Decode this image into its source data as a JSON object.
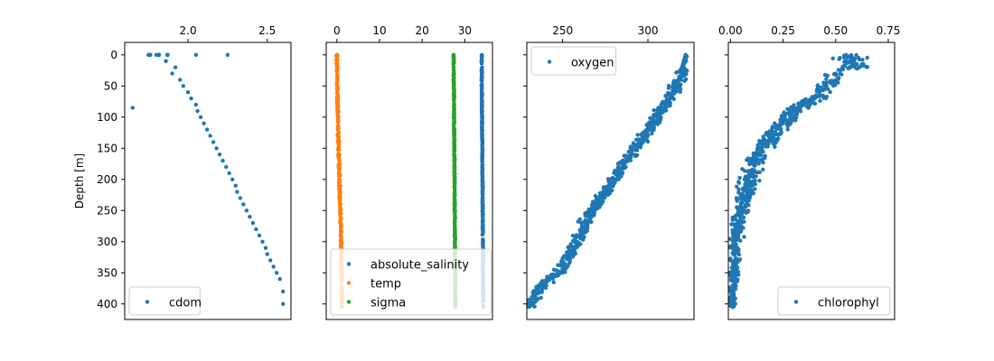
{
  "chart_data": [
    {
      "type": "scatter",
      "ylabel": "Depth [m]",
      "xlabel": "",
      "xlim": [
        1.6,
        2.65
      ],
      "xticks": [
        2.0,
        2.5
      ],
      "xtick_labels": [
        "2.0",
        "2.5"
      ],
      "ylim": [
        425,
        -20
      ],
      "yticks": [
        0,
        50,
        100,
        150,
        200,
        250,
        300,
        350,
        400
      ],
      "ytick_labels": [
        "0",
        "50",
        "100",
        "150",
        "200",
        "250",
        "300",
        "350",
        "400"
      ],
      "legend_position": "lower-left",
      "series": [
        {
          "name": "cdom",
          "color": "#1f77b4",
          "points": [
            [
              1.8,
              0
            ],
            [
              1.86,
              10
            ],
            [
              1.92,
              20
            ],
            [
              1.9,
              30
            ],
            [
              1.95,
              40
            ],
            [
              1.97,
              50
            ],
            [
              2.0,
              60
            ],
            [
              2.02,
              70
            ],
            [
              2.05,
              80
            ],
            [
              2.06,
              90
            ],
            [
              2.08,
              100
            ],
            [
              2.1,
              110
            ],
            [
              2.12,
              120
            ],
            [
              2.14,
              130
            ],
            [
              2.16,
              140
            ],
            [
              2.18,
              150
            ],
            [
              2.2,
              160
            ],
            [
              2.22,
              170
            ],
            [
              2.24,
              180
            ],
            [
              2.26,
              190
            ],
            [
              2.28,
              200
            ],
            [
              2.3,
              210
            ],
            [
              2.31,
              220
            ],
            [
              2.33,
              230
            ],
            [
              2.35,
              240
            ],
            [
              2.37,
              250
            ],
            [
              2.39,
              260
            ],
            [
              2.41,
              270
            ],
            [
              2.43,
              280
            ],
            [
              2.45,
              290
            ],
            [
              2.47,
              300
            ],
            [
              2.49,
              310
            ],
            [
              2.5,
              320
            ],
            [
              2.52,
              330
            ],
            [
              2.54,
              340
            ],
            [
              2.56,
              350
            ],
            [
              2.58,
              360
            ],
            [
              2.6,
              380
            ],
            [
              2.6,
              400
            ],
            [
              1.65,
              85
            ],
            [
              1.75,
              0
            ],
            [
              2.25,
              0
            ],
            [
              2.05,
              0
            ]
          ]
        }
      ]
    },
    {
      "type": "scatter",
      "xlabel": "",
      "xlim": [
        -2.5,
        36.5
      ],
      "xticks": [
        0,
        10,
        20,
        30
      ],
      "xtick_labels": [
        "0",
        "10",
        "20",
        "30"
      ],
      "ylim": [
        425,
        -20
      ],
      "legend_position": "lower-left",
      "series": [
        {
          "name": "absolute_salinity",
          "color": "#1f77b4",
          "points": [
            [
              34.0,
              0
            ],
            [
              34.0,
              50
            ],
            [
              34.05,
              100
            ],
            [
              34.1,
              150
            ],
            [
              34.15,
              200
            ],
            [
              34.2,
              250
            ],
            [
              34.25,
              300
            ],
            [
              34.3,
              350
            ],
            [
              34.35,
              405
            ]
          ]
        },
        {
          "name": "temp",
          "color": "#ff7f0e",
          "points": [
            [
              0.0,
              0
            ],
            [
              0.1,
              50
            ],
            [
              0.25,
              100
            ],
            [
              0.4,
              150
            ],
            [
              0.6,
              200
            ],
            [
              0.8,
              250
            ],
            [
              1.0,
              300
            ],
            [
              1.1,
              350
            ],
            [
              1.2,
              405
            ]
          ]
        },
        {
          "name": "sigma",
          "color": "#2ca02c",
          "points": [
            [
              27.4,
              0
            ],
            [
              27.45,
              50
            ],
            [
              27.5,
              100
            ],
            [
              27.55,
              150
            ],
            [
              27.6,
              200
            ],
            [
              27.65,
              250
            ],
            [
              27.7,
              300
            ],
            [
              27.75,
              350
            ],
            [
              27.8,
              405
            ]
          ]
        }
      ]
    },
    {
      "type": "scatter",
      "xlabel": "",
      "xlim": [
        229,
        327
      ],
      "xticks": [
        250,
        300
      ],
      "xtick_labels": [
        "250",
        "300"
      ],
      "ylim": [
        425,
        -20
      ],
      "legend_position": "top-left",
      "series": [
        {
          "name": "oxygen",
          "color": "#1f77b4",
          "points": [
            [
              322,
              0
            ],
            [
              320,
              20
            ],
            [
              318,
              40
            ],
            [
              315,
              60
            ],
            [
              310,
              80
            ],
            [
              305,
              100
            ],
            [
              300,
              120
            ],
            [
              295,
              140
            ],
            [
              290,
              160
            ],
            [
              285,
              180
            ],
            [
              280,
              200
            ],
            [
              275,
              220
            ],
            [
              270,
              240
            ],
            [
              265,
              260
            ],
            [
              262,
              280
            ],
            [
              258,
              300
            ],
            [
              255,
              320
            ],
            [
              250,
              340
            ],
            [
              245,
              355
            ],
            [
              238,
              370
            ],
            [
              233,
              390
            ],
            [
              230,
              405
            ]
          ]
        }
      ]
    },
    {
      "type": "scatter",
      "xlabel": "",
      "xlim": [
        -0.01,
        0.78
      ],
      "xticks": [
        0.0,
        0.25,
        0.5,
        0.75
      ],
      "xtick_labels": [
        "0.00",
        "0.25",
        "0.50",
        "0.75"
      ],
      "ylim": [
        425,
        -20
      ],
      "legend_position": "lower-right",
      "series": [
        {
          "name": "chlorophyl",
          "color": "#1f77b4",
          "points": [
            [
              0.55,
              0
            ],
            [
              0.6,
              15
            ],
            [
              0.5,
              30
            ],
            [
              0.45,
              50
            ],
            [
              0.4,
              70
            ],
            [
              0.3,
              90
            ],
            [
              0.25,
              110
            ],
            [
              0.2,
              130
            ],
            [
              0.15,
              150
            ],
            [
              0.12,
              170
            ],
            [
              0.1,
              190
            ],
            [
              0.08,
              210
            ],
            [
              0.06,
              230
            ],
            [
              0.05,
              250
            ],
            [
              0.04,
              270
            ],
            [
              0.03,
              290
            ],
            [
              0.025,
              310
            ],
            [
              0.02,
              330
            ],
            [
              0.02,
              350
            ],
            [
              0.015,
              370
            ],
            [
              0.01,
              390
            ],
            [
              0.01,
              405
            ]
          ]
        }
      ]
    }
  ]
}
